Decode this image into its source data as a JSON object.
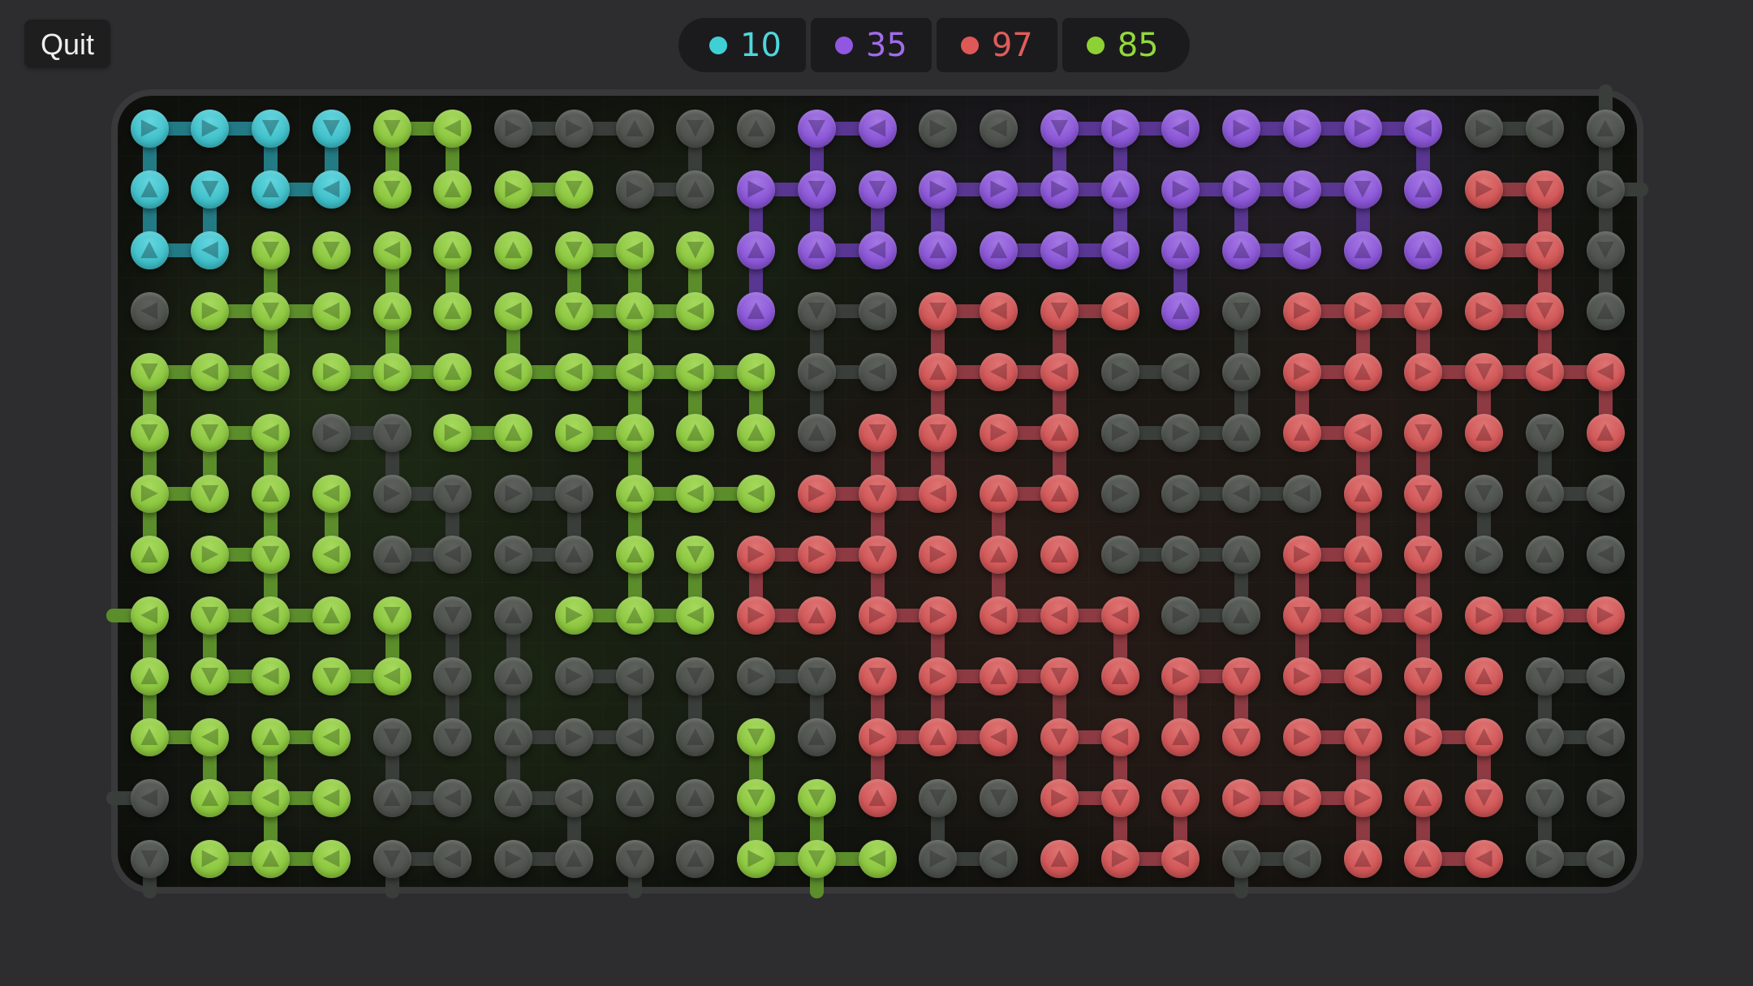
{
  "app": {
    "quit_label": "Quit"
  },
  "legend": {
    "items": [
      {
        "id": "cyan",
        "count": "10",
        "color": "#3fd0d6",
        "text_color": "#4fd6dc"
      },
      {
        "id": "purple",
        "count": "35",
        "color": "#9257e0",
        "text_color": "#a06cea"
      },
      {
        "id": "red",
        "count": "97",
        "color": "#df5858",
        "text_color": "#e05c5c"
      },
      {
        "id": "green",
        "count": "85",
        "color": "#8ed135",
        "text_color": "#93d83c"
      }
    ]
  },
  "palette": {
    "cyan": {
      "node": "#3fbfc9",
      "light": "#63d6de",
      "band": "#227a85",
      "arrow": "rgba(0,45,52,0.38)"
    },
    "green": {
      "node": "#8bc63e",
      "light": "#a6d95e",
      "band": "#5b8d2b",
      "arrow": "rgba(25,60,0,0.35)"
    },
    "purple": {
      "node": "#8a55d6",
      "light": "#a478e3",
      "band": "#583691",
      "arrow": "rgba(30,0,70,0.35)"
    },
    "red": {
      "node": "#d05556",
      "light": "#de7473",
      "band": "#8d3a42",
      "arrow": "rgba(70,0,10,0.33)"
    },
    "gray": {
      "node": "#4e524d",
      "light": "#5d615c",
      "band": "#3a3e3a",
      "arrow": "rgba(0,0,0,0.25)"
    }
  },
  "board": {
    "columns": 25,
    "rows": 13,
    "encoding": "token = color letter (c=cyan, g=green, p=purple, r=red, x=gray/unlit) + arrow direction (U=up, D=down, L=left, R=right)",
    "cells": [
      "cR cR cD cD gD gL xR xR xU xD xU pD pL xR xL pD pR pL pR pR pR pL xR xL xU",
      "cU cD cU cL gD gU gR gD xR xU pR pD pD pR pR pR pU pR pR pR pD pU rR rD xR",
      "cU cL gD gD gL gU gU gD gL gD pU pU pL pU pU pL pL pU pU pL pU pU rR rD xD",
      "xL gR gD gL gU gU gL gD gU gL pU xD xL rD rL rD rL pU xD rR rR rD rR rD xU",
      "gD gL gL gR gR gU gL gL gL gL gL xR xL rU rL rL xR xL xU rR rU rR rD rL rL",
      "gD gD gL xR xD gR gU gR gU gU gU xU rD rD rR rU xR xR xU rU rL rD rU xD rU",
      "gR gD gU gL xR xD xR xL gU gL gL rR rD rL rU rU xR xR xL xL rU rD xD xU xL",
      "gU gR gD gL xU xL xR xU gU gD rR rR rD rR rU rU xR xR xU rR rU rD xR xU xL",
      "gL gD gL gU gD xD xU gR gU gL rR rU rR rR rL rL rL xR xU rD rL rL rR rR rR",
      "gU gD gL gD gL xD xU xR xL xD xR xD rD rR rU rD rU rR rD rR rL rD rU xD xL",
      "gU gL gU gL xD xD xU xR xL xU gD xU rR rU rL rD rL rU rD rR rD rR rU xD xL",
      "xL gU gL gL xU xL xU xL xU xU gD gD rU xD xD rR rD rD rR rR rR rU rD xD xR",
      "xD gR gU gL xD xL xR xU xD xU gR gD gL xR xL rU rR rL xD xL rU rU rL xR xL"
    ],
    "h_edges": [
      [
        0,
        1,
        4,
        6,
        7,
        11,
        15,
        16,
        18,
        19,
        20,
        22
      ],
      [
        2,
        6,
        8,
        10,
        13,
        14,
        15,
        17,
        18,
        19,
        22
      ],
      [
        0,
        7,
        11,
        14,
        15,
        18,
        22
      ],
      [
        1,
        2,
        7,
        8,
        11,
        13,
        15,
        19,
        20,
        22
      ],
      [
        0,
        1,
        3,
        4,
        6,
        7,
        8,
        9,
        11,
        13,
        14,
        16,
        19,
        21,
        22,
        23
      ],
      [
        1,
        3,
        5,
        7,
        14,
        16,
        17,
        19
      ],
      [
        0,
        4,
        6,
        8,
        9,
        11,
        12,
        14,
        17,
        18,
        23
      ],
      [
        1,
        4,
        6,
        10,
        11,
        16,
        17,
        19
      ],
      [
        1,
        2,
        7,
        8,
        10,
        12,
        14,
        15,
        17,
        19,
        20,
        22,
        23
      ],
      [
        1,
        3,
        7,
        10,
        13,
        14,
        17,
        19,
        23
      ],
      [
        0,
        2,
        6,
        7,
        12,
        13,
        15,
        19,
        21,
        23
      ],
      [
        1,
        2,
        4,
        6,
        15,
        18,
        19
      ],
      [
        1,
        2,
        4,
        6,
        10,
        11,
        13,
        16,
        18,
        21,
        23
      ]
    ],
    "v_edges": [
      [
        0,
        2,
        3,
        4,
        5,
        9,
        11,
        15,
        16,
        21,
        24
      ],
      [
        0,
        1,
        10,
        11,
        12,
        13,
        16,
        17,
        18,
        20,
        23,
        24
      ],
      [
        2,
        4,
        5,
        7,
        8,
        9,
        10,
        17,
        23,
        24
      ],
      [
        2,
        4,
        6,
        8,
        11,
        13,
        15,
        18,
        20,
        21,
        23
      ],
      [
        0,
        8,
        9,
        10,
        11,
        13,
        15,
        18,
        19,
        22,
        24
      ],
      [
        0,
        1,
        2,
        4,
        8,
        12,
        13,
        15,
        20,
        21,
        23
      ],
      [
        0,
        2,
        3,
        5,
        7,
        8,
        12,
        14,
        20,
        21,
        22
      ],
      [
        2,
        8,
        9,
        10,
        12,
        14,
        18,
        19,
        20,
        21
      ],
      [
        0,
        1,
        4,
        5,
        6,
        13,
        16,
        19,
        21
      ],
      [
        0,
        5,
        6,
        8,
        9,
        11,
        12,
        13,
        15,
        17,
        18,
        21,
        23
      ],
      [
        1,
        2,
        4,
        6,
        10,
        12,
        15,
        16,
        20,
        22
      ],
      [
        2,
        7,
        10,
        11,
        13,
        16,
        17,
        20,
        21,
        23
      ]
    ],
    "stubs": [
      {
        "side": "left",
        "row": 8
      },
      {
        "side": "left",
        "row": 11
      },
      {
        "side": "right",
        "row": 1
      },
      {
        "side": "top",
        "col": 24
      },
      {
        "side": "bottom",
        "col": 0
      },
      {
        "side": "bottom",
        "col": 4
      },
      {
        "side": "bottom",
        "col": 8
      },
      {
        "side": "bottom",
        "col": 11
      },
      {
        "side": "bottom",
        "col": 18
      }
    ]
  }
}
